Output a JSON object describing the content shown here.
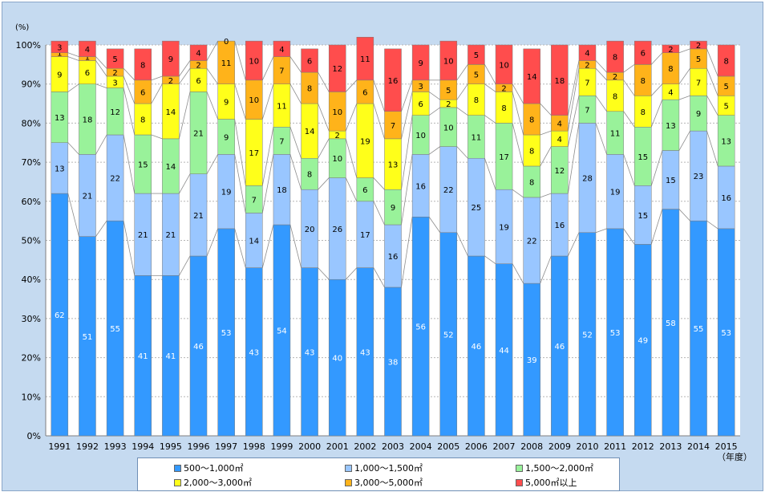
{
  "chart_data": {
    "type": "stacked_bar_100",
    "y_unit_label": "(%)",
    "x_unit_label": "（年度）",
    "ylim": [
      0,
      100
    ],
    "y_ticks": [
      "0%",
      "10%",
      "20%",
      "30%",
      "40%",
      "50%",
      "60%",
      "70%",
      "80%",
      "90%",
      "100%"
    ],
    "categories": [
      "1991",
      "1992",
      "1993",
      "1994",
      "1995",
      "1996",
      "1997",
      "1998",
      "1999",
      "2000",
      "2001",
      "2002",
      "2003",
      "2004",
      "2005",
      "2006",
      "2007",
      "2008",
      "2009",
      "2010",
      "2011",
      "2012",
      "2013",
      "2014",
      "2015"
    ],
    "series": [
      {
        "name": "500～1,000㎡",
        "color": "#3399ff",
        "values": [
          62,
          51,
          55,
          41,
          41,
          46,
          53,
          43,
          54,
          43,
          40,
          43,
          38,
          56,
          52,
          46,
          44,
          39,
          46,
          52,
          53,
          49,
          58,
          55,
          53
        ]
      },
      {
        "name": "1,000～1,500㎡",
        "color": "#99c6ff",
        "values": [
          13,
          21,
          22,
          21,
          21,
          21,
          19,
          14,
          18,
          20,
          26,
          17,
          16,
          16,
          22,
          25,
          19,
          22,
          16,
          28,
          19,
          15,
          15,
          23,
          16
        ]
      },
      {
        "name": "1,500～2,000㎡",
        "color": "#99f29a",
        "values": [
          13,
          18,
          12,
          15,
          14,
          21,
          9,
          7,
          7,
          8,
          10,
          6,
          9,
          10,
          10,
          11,
          17,
          8,
          12,
          7,
          11,
          15,
          13,
          9,
          13
        ]
      },
      {
        "name": "2,000～3,000㎡",
        "color": "#ffff1a",
        "values": [
          9,
          6,
          3,
          8,
          14,
          6,
          9,
          17,
          11,
          14,
          2,
          19,
          13,
          6,
          2,
          8,
          8,
          8,
          4,
          7,
          8,
          8,
          4,
          7,
          5
        ]
      },
      {
        "name": "3,000～5,000㎡",
        "color": "#ffb31a",
        "values": [
          1,
          1,
          2,
          6,
          2,
          2,
          11,
          10,
          7,
          8,
          10,
          6,
          7,
          3,
          5,
          5,
          2,
          8,
          4,
          2,
          2,
          8,
          8,
          5,
          5
        ]
      },
      {
        "name": "5,000㎡以上",
        "color": "#ff4d4d",
        "values": [
          3,
          4,
          5,
          8,
          9,
          4,
          0,
          10,
          4,
          6,
          12,
          11,
          16,
          9,
          10,
          5,
          10,
          14,
          18,
          4,
          8,
          6,
          2,
          2,
          8
        ]
      }
    ]
  },
  "legend": {
    "items": [
      {
        "label": "500～1,000㎡",
        "color": "#3399ff"
      },
      {
        "label": "1,000～1,500㎡",
        "color": "#99c6ff"
      },
      {
        "label": "1,500～2,000㎡",
        "color": "#99f29a"
      },
      {
        "label": "2,000～3,000㎡",
        "color": "#ffff1a"
      },
      {
        "label": "3,000～5,000㎡",
        "color": "#ffb31a"
      },
      {
        "label": "5,000㎡以上",
        "color": "#ff4d4d"
      }
    ]
  }
}
